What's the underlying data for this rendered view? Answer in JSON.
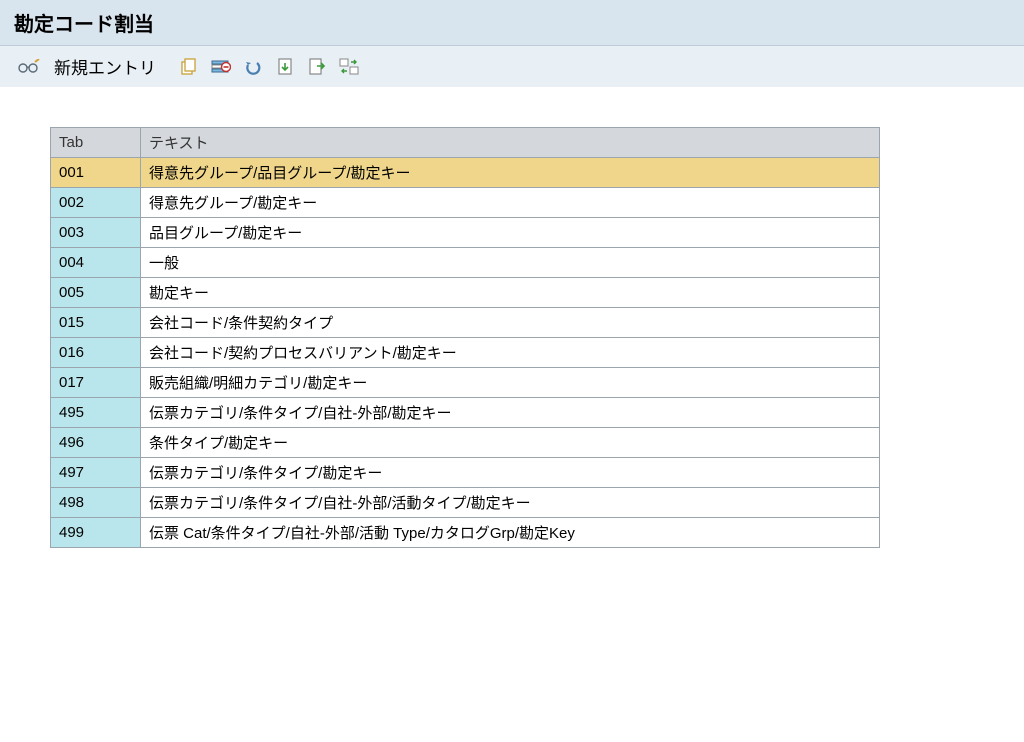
{
  "header": {
    "title": "勘定コード割当"
  },
  "toolbar": {
    "new_entry_label": "新規エントリ",
    "icons": {
      "glasses": "glasses-edit-icon",
      "copy": "copy-icon",
      "delete_row": "delete-row-icon",
      "undo": "undo-icon",
      "page_down": "page-down-icon",
      "page_export": "page-export-icon",
      "swap": "swap-icon"
    }
  },
  "table": {
    "columns": {
      "tab": "Tab",
      "text": "テキスト"
    },
    "header_bg": "#d4d8dc",
    "tab_col_bg": "#b9e6ec",
    "selected_bg": "#f0d68a",
    "border_color": "#9aa5ae",
    "selected_index": 0,
    "rows": [
      {
        "tab": "001",
        "text": "得意先グループ/品目グループ/勘定キー"
      },
      {
        "tab": "002",
        "text": "得意先グループ/勘定キー"
      },
      {
        "tab": "003",
        "text": "品目グループ/勘定キー"
      },
      {
        "tab": "004",
        "text": "一般"
      },
      {
        "tab": "005",
        "text": "勘定キー"
      },
      {
        "tab": "015",
        "text": "会社コード/条件契約タイプ"
      },
      {
        "tab": "016",
        "text": "会社コード/契約プロセスバリアント/勘定キー"
      },
      {
        "tab": "017",
        "text": "販売組織/明細カテゴリ/勘定キー"
      },
      {
        "tab": "495",
        "text": "伝票カテゴリ/条件タイプ/自社-外部/勘定キー"
      },
      {
        "tab": "496",
        "text": "条件タイプ/勘定キー"
      },
      {
        "tab": "497",
        "text": "伝票カテゴリ/条件タイプ/勘定キー"
      },
      {
        "tab": "498",
        "text": "伝票カテゴリ/条件タイプ/自社-外部/活動タイプ/勘定キー"
      },
      {
        "tab": "499",
        "text": "伝票 Cat/条件タイプ/自社-外部/活動 Type/カタログGrp/勘定Key"
      }
    ]
  }
}
